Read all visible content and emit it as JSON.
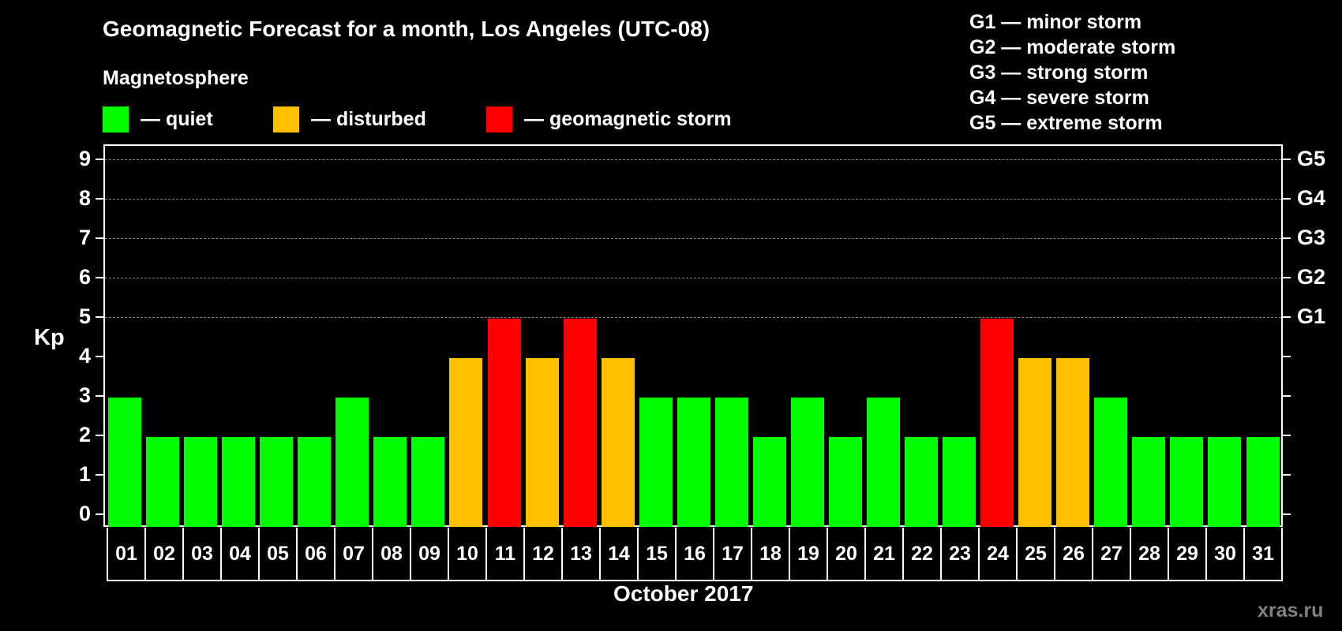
{
  "header": {
    "title": "Geomagnetic Forecast for a month, Los Angeles (UTC-08)",
    "subtitle": "Magnetosphere"
  },
  "legend": [
    {
      "label": "— quiet",
      "color": "#00ff00"
    },
    {
      "label": "— disturbed",
      "color": "#ffc000"
    },
    {
      "label": "— geomagnetic storm",
      "color": "#ff0000"
    }
  ],
  "storm_scale": [
    "G1 — minor storm",
    "G2 — moderate storm",
    "G3 — strong storm",
    "G4 — severe storm",
    "G5 — extreme storm"
  ],
  "axis": {
    "ylabel": "Kp",
    "yticks": [
      "0",
      "1",
      "2",
      "3",
      "4",
      "5",
      "6",
      "7",
      "8",
      "9"
    ],
    "right_ticks": {
      "5": "G1",
      "6": "G2",
      "7": "G3",
      "8": "G4",
      "9": "G5"
    },
    "xlabel": "October 2017"
  },
  "watermark": "xras.ru",
  "colors": {
    "quiet": "#00ff00",
    "disturbed": "#ffc000",
    "storm": "#ff0000"
  },
  "chart_data": {
    "type": "bar",
    "title": "Geomagnetic Forecast for a month, Los Angeles (UTC-08)",
    "subtitle": "Magnetosphere",
    "xlabel": "October 2017",
    "ylabel": "Kp",
    "ylim": [
      0,
      9
    ],
    "grid": "dashed horizontal lines at Kp 5-9",
    "categories": [
      "01",
      "02",
      "03",
      "04",
      "05",
      "06",
      "07",
      "08",
      "09",
      "10",
      "11",
      "12",
      "13",
      "14",
      "15",
      "16",
      "17",
      "18",
      "19",
      "20",
      "21",
      "22",
      "23",
      "24",
      "25",
      "26",
      "27",
      "28",
      "29",
      "30",
      "31"
    ],
    "values": [
      3,
      2,
      2,
      2,
      2,
      2,
      3,
      2,
      2,
      4,
      5,
      4,
      5,
      4,
      3,
      3,
      3,
      2,
      3,
      2,
      3,
      2,
      2,
      5,
      4,
      4,
      3,
      2,
      2,
      2,
      2
    ],
    "status": [
      "quiet",
      "quiet",
      "quiet",
      "quiet",
      "quiet",
      "quiet",
      "quiet",
      "quiet",
      "quiet",
      "disturbed",
      "storm",
      "disturbed",
      "storm",
      "disturbed",
      "quiet",
      "quiet",
      "quiet",
      "quiet",
      "quiet",
      "quiet",
      "quiet",
      "quiet",
      "quiet",
      "storm",
      "disturbed",
      "disturbed",
      "quiet",
      "quiet",
      "quiet",
      "quiet",
      "quiet"
    ],
    "legend": [
      "quiet",
      "disturbed",
      "geomagnetic storm"
    ],
    "secondary_axis": {
      "5": "G1",
      "6": "G2",
      "7": "G3",
      "8": "G4",
      "9": "G5"
    }
  }
}
